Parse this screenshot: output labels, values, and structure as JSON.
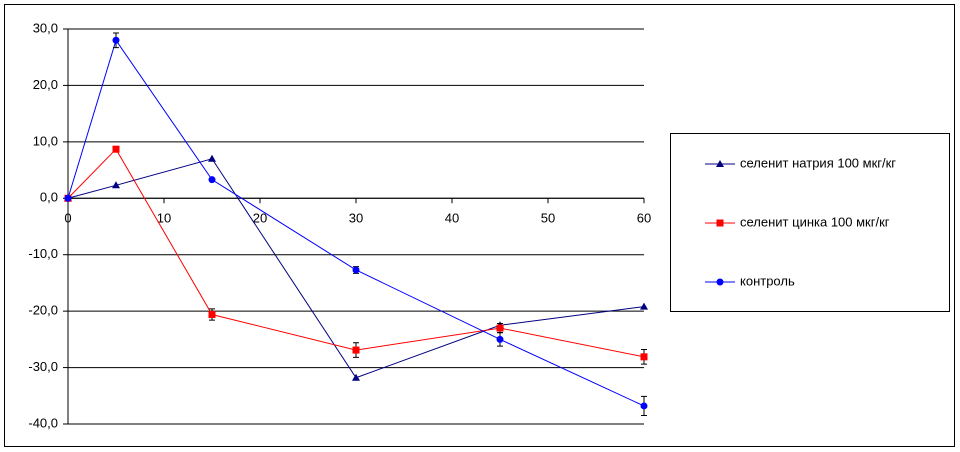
{
  "chart_data": {
    "type": "line",
    "x": [
      0,
      5,
      15,
      30,
      45,
      60
    ],
    "xlim": [
      0,
      60
    ],
    "xticks": [
      0,
      10,
      20,
      30,
      40,
      50,
      60
    ],
    "ylim": [
      -40,
      30
    ],
    "yticks": [
      {
        "value": 30,
        "label": "30,0"
      },
      {
        "value": 20,
        "label": "20,0"
      },
      {
        "value": 10,
        "label": "10,0"
      },
      {
        "value": 0,
        "label": "0,0"
      },
      {
        "value": -10,
        "label": "-10,0"
      },
      {
        "value": -20,
        "label": "-20,0"
      },
      {
        "value": -30,
        "label": "-30,0"
      },
      {
        "value": -40,
        "label": "-40,0"
      }
    ],
    "grid": true,
    "legend": "right",
    "series": [
      {
        "name": "селенит натрия 100 мкг/кг",
        "color": "#000080",
        "marker": "triangle",
        "values": [
          0,
          2.3,
          7.0,
          -31.8,
          -22.5,
          -19.2
        ]
      },
      {
        "name": "селенит цинка 100 мкг/кг",
        "color": "#ff0000",
        "marker": "square",
        "values": [
          0,
          8.7,
          -20.6,
          -26.9,
          -23.0,
          -28.1
        ],
        "errors": [
          0,
          0.3,
          1.0,
          1.3,
          0.8,
          1.3
        ]
      },
      {
        "name": "контроль",
        "color": "#0000ff",
        "marker": "circle",
        "values": [
          0,
          28.0,
          3.3,
          -12.7,
          -25.0,
          -36.8
        ],
        "errors": [
          0,
          1.3,
          0,
          0.6,
          1.2,
          1.7
        ]
      }
    ]
  }
}
